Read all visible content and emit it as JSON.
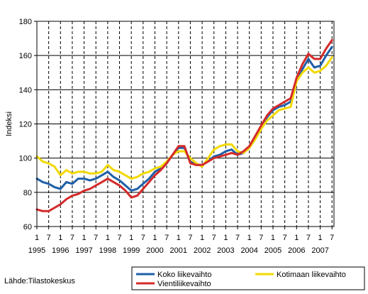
{
  "chart_data": {
    "type": "line",
    "ylabel": "Indeksi",
    "ylim": [
      60,
      180
    ],
    "yticks": [
      60,
      80,
      100,
      120,
      140,
      160,
      180
    ],
    "xlim": [
      1995.0,
      2007.583
    ],
    "x_tick_labels": [
      {
        "x": 1995.0,
        "month": "1",
        "year": "1995"
      },
      {
        "x": 1995.5,
        "month": "7",
        "year": ""
      },
      {
        "x": 1996.0,
        "month": "1",
        "year": "1996"
      },
      {
        "x": 1996.5,
        "month": "7",
        "year": ""
      },
      {
        "x": 1997.0,
        "month": "1",
        "year": "1997"
      },
      {
        "x": 1997.5,
        "month": "7",
        "year": ""
      },
      {
        "x": 1998.0,
        "month": "1",
        "year": "1998"
      },
      {
        "x": 1998.5,
        "month": "7",
        "year": ""
      },
      {
        "x": 1999.0,
        "month": "1",
        "year": "1999"
      },
      {
        "x": 1999.5,
        "month": "7",
        "year": ""
      },
      {
        "x": 2000.0,
        "month": "1",
        "year": "2000"
      },
      {
        "x": 2000.5,
        "month": "7",
        "year": ""
      },
      {
        "x": 2001.0,
        "month": "1",
        "year": "2001"
      },
      {
        "x": 2001.5,
        "month": "7",
        "year": ""
      },
      {
        "x": 2002.0,
        "month": "1",
        "year": "2002"
      },
      {
        "x": 2002.5,
        "month": "7",
        "year": ""
      },
      {
        "x": 2003.0,
        "month": "1",
        "year": "2003"
      },
      {
        "x": 2003.5,
        "month": "7",
        "year": ""
      },
      {
        "x": 2004.0,
        "month": "1",
        "year": "2004"
      },
      {
        "x": 2004.5,
        "month": "7",
        "year": ""
      },
      {
        "x": 2005.0,
        "month": "1",
        "year": "2005"
      },
      {
        "x": 2005.5,
        "month": "7",
        "year": ""
      },
      {
        "x": 2006.0,
        "month": "1",
        "year": "2006"
      },
      {
        "x": 2006.5,
        "month": "7",
        "year": ""
      },
      {
        "x": 2007.0,
        "month": "1",
        "year": "2007"
      },
      {
        "x": 2007.5,
        "month": "7",
        "year": ""
      }
    ],
    "grid": {
      "horizontal": "solid",
      "vertical": "dashed"
    },
    "legend_placement": "bottom-right",
    "series": [
      {
        "name": "Koko liikevaihto",
        "color": "#1f5fa8",
        "points": [
          [
            1995.0,
            88
          ],
          [
            1995.25,
            86
          ],
          [
            1995.5,
            85
          ],
          [
            1995.75,
            83
          ],
          [
            1996.0,
            82
          ],
          [
            1996.25,
            86
          ],
          [
            1996.5,
            85
          ],
          [
            1996.75,
            88
          ],
          [
            1997.0,
            88
          ],
          [
            1997.25,
            87
          ],
          [
            1997.5,
            88
          ],
          [
            1997.75,
            90
          ],
          [
            1998.0,
            92
          ],
          [
            1998.25,
            89
          ],
          [
            1998.5,
            87
          ],
          [
            1998.75,
            84
          ],
          [
            1999.0,
            81
          ],
          [
            1999.25,
            82
          ],
          [
            1999.5,
            85
          ],
          [
            1999.75,
            88
          ],
          [
            2000.0,
            92
          ],
          [
            2000.25,
            94
          ],
          [
            2000.5,
            97
          ],
          [
            2000.75,
            102
          ],
          [
            2001.0,
            106
          ],
          [
            2001.25,
            106
          ],
          [
            2001.5,
            98
          ],
          [
            2001.75,
            96
          ],
          [
            2002.0,
            96
          ],
          [
            2002.25,
            98
          ],
          [
            2002.5,
            101
          ],
          [
            2002.75,
            102
          ],
          [
            2003.0,
            104
          ],
          [
            2003.25,
            105
          ],
          [
            2003.5,
            102
          ],
          [
            2003.75,
            103
          ],
          [
            2004.0,
            106
          ],
          [
            2004.25,
            112
          ],
          [
            2004.5,
            118
          ],
          [
            2004.75,
            124
          ],
          [
            2005.0,
            128
          ],
          [
            2005.25,
            130
          ],
          [
            2005.5,
            131
          ],
          [
            2005.75,
            133
          ],
          [
            2006.0,
            145
          ],
          [
            2006.25,
            152
          ],
          [
            2006.5,
            158
          ],
          [
            2006.75,
            153
          ],
          [
            2007.0,
            154
          ],
          [
            2007.25,
            160
          ],
          [
            2007.5,
            165
          ]
        ]
      },
      {
        "name": "Kotimaan liikevaihto",
        "color": "#f2d900",
        "points": [
          [
            1995.0,
            101
          ],
          [
            1995.25,
            98
          ],
          [
            1995.5,
            97
          ],
          [
            1995.75,
            95
          ],
          [
            1996.0,
            90
          ],
          [
            1996.25,
            93
          ],
          [
            1996.5,
            91
          ],
          [
            1996.75,
            92
          ],
          [
            1997.0,
            92
          ],
          [
            1997.25,
            91
          ],
          [
            1997.5,
            91
          ],
          [
            1997.75,
            92
          ],
          [
            1998.0,
            96
          ],
          [
            1998.25,
            93
          ],
          [
            1998.5,
            92
          ],
          [
            1998.75,
            90
          ],
          [
            1999.0,
            88
          ],
          [
            1999.25,
            89
          ],
          [
            1999.5,
            91
          ],
          [
            1999.75,
            92
          ],
          [
            2000.0,
            94
          ],
          [
            2000.25,
            95
          ],
          [
            2000.5,
            98
          ],
          [
            2000.75,
            102
          ],
          [
            2001.0,
            104
          ],
          [
            2001.25,
            104
          ],
          [
            2001.5,
            100
          ],
          [
            2001.75,
            97
          ],
          [
            2002.0,
            95
          ],
          [
            2002.25,
            100
          ],
          [
            2002.5,
            105
          ],
          [
            2002.75,
            107
          ],
          [
            2003.0,
            108
          ],
          [
            2003.25,
            108
          ],
          [
            2003.5,
            104
          ],
          [
            2003.75,
            103
          ],
          [
            2004.0,
            106
          ],
          [
            2004.25,
            111
          ],
          [
            2004.5,
            117
          ],
          [
            2004.75,
            122
          ],
          [
            2005.0,
            125
          ],
          [
            2005.25,
            128
          ],
          [
            2005.5,
            129
          ],
          [
            2005.75,
            130
          ],
          [
            2006.0,
            145
          ],
          [
            2006.25,
            150
          ],
          [
            2006.5,
            153
          ],
          [
            2006.75,
            150
          ],
          [
            2007.0,
            151
          ],
          [
            2007.25,
            154
          ],
          [
            2007.5,
            159
          ]
        ]
      },
      {
        "name": "Vientiliikevaihto",
        "color": "#d42a2a",
        "points": [
          [
            1995.0,
            70
          ],
          [
            1995.25,
            69
          ],
          [
            1995.5,
            69
          ],
          [
            1995.75,
            71
          ],
          [
            1996.0,
            73
          ],
          [
            1996.25,
            76
          ],
          [
            1996.5,
            78
          ],
          [
            1996.75,
            79
          ],
          [
            1997.0,
            81
          ],
          [
            1997.25,
            82
          ],
          [
            1997.5,
            84
          ],
          [
            1997.75,
            86
          ],
          [
            1998.0,
            88
          ],
          [
            1998.25,
            86
          ],
          [
            1998.5,
            84
          ],
          [
            1998.75,
            81
          ],
          [
            1999.0,
            77
          ],
          [
            1999.25,
            78
          ],
          [
            1999.5,
            82
          ],
          [
            1999.75,
            86
          ],
          [
            2000.0,
            90
          ],
          [
            2000.25,
            93
          ],
          [
            2000.5,
            97
          ],
          [
            2000.75,
            102
          ],
          [
            2001.0,
            107
          ],
          [
            2001.25,
            107
          ],
          [
            2001.5,
            97
          ],
          [
            2001.75,
            96
          ],
          [
            2002.0,
            96
          ],
          [
            2002.25,
            98
          ],
          [
            2002.5,
            100
          ],
          [
            2002.75,
            101
          ],
          [
            2003.0,
            102
          ],
          [
            2003.25,
            103
          ],
          [
            2003.5,
            102
          ],
          [
            2003.75,
            104
          ],
          [
            2004.0,
            107
          ],
          [
            2004.25,
            113
          ],
          [
            2004.5,
            119
          ],
          [
            2004.75,
            125
          ],
          [
            2005.0,
            129
          ],
          [
            2005.25,
            131
          ],
          [
            2005.5,
            133
          ],
          [
            2005.75,
            135
          ],
          [
            2006.0,
            147
          ],
          [
            2006.25,
            155
          ],
          [
            2006.5,
            161
          ],
          [
            2006.75,
            158
          ],
          [
            2007.0,
            158
          ],
          [
            2007.25,
            164
          ],
          [
            2007.5,
            169
          ]
        ]
      }
    ]
  },
  "source": "Lähde:Tilastokeskus"
}
